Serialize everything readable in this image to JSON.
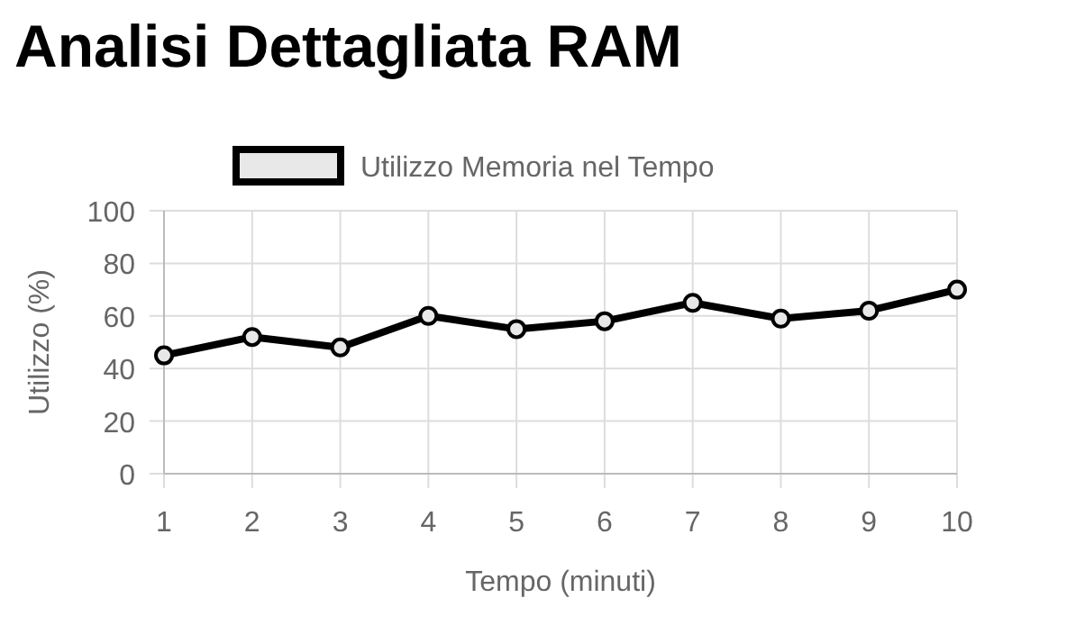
{
  "chart_data": {
    "type": "line",
    "title": "Analisi Dettagliata RAM",
    "xlabel": "Tempo (minuti)",
    "ylabel": "Utilizzo (%)",
    "x": [
      1,
      2,
      3,
      4,
      5,
      6,
      7,
      8,
      9,
      10
    ],
    "series": [
      {
        "name": "Utilizzo Memoria nel Tempo",
        "color": "#000000",
        "values": [
          45,
          52,
          48,
          60,
          55,
          58,
          65,
          59,
          62,
          70
        ]
      }
    ],
    "xlim": [
      1,
      10
    ],
    "xticks": [
      1,
      2,
      3,
      4,
      5,
      6,
      7,
      8,
      9,
      10
    ],
    "ylim": [
      0,
      100
    ],
    "yticks": [
      0,
      20,
      40,
      60,
      80,
      100
    ],
    "grid": true,
    "legend": "top",
    "marker": "circle",
    "line_style": "solid"
  }
}
